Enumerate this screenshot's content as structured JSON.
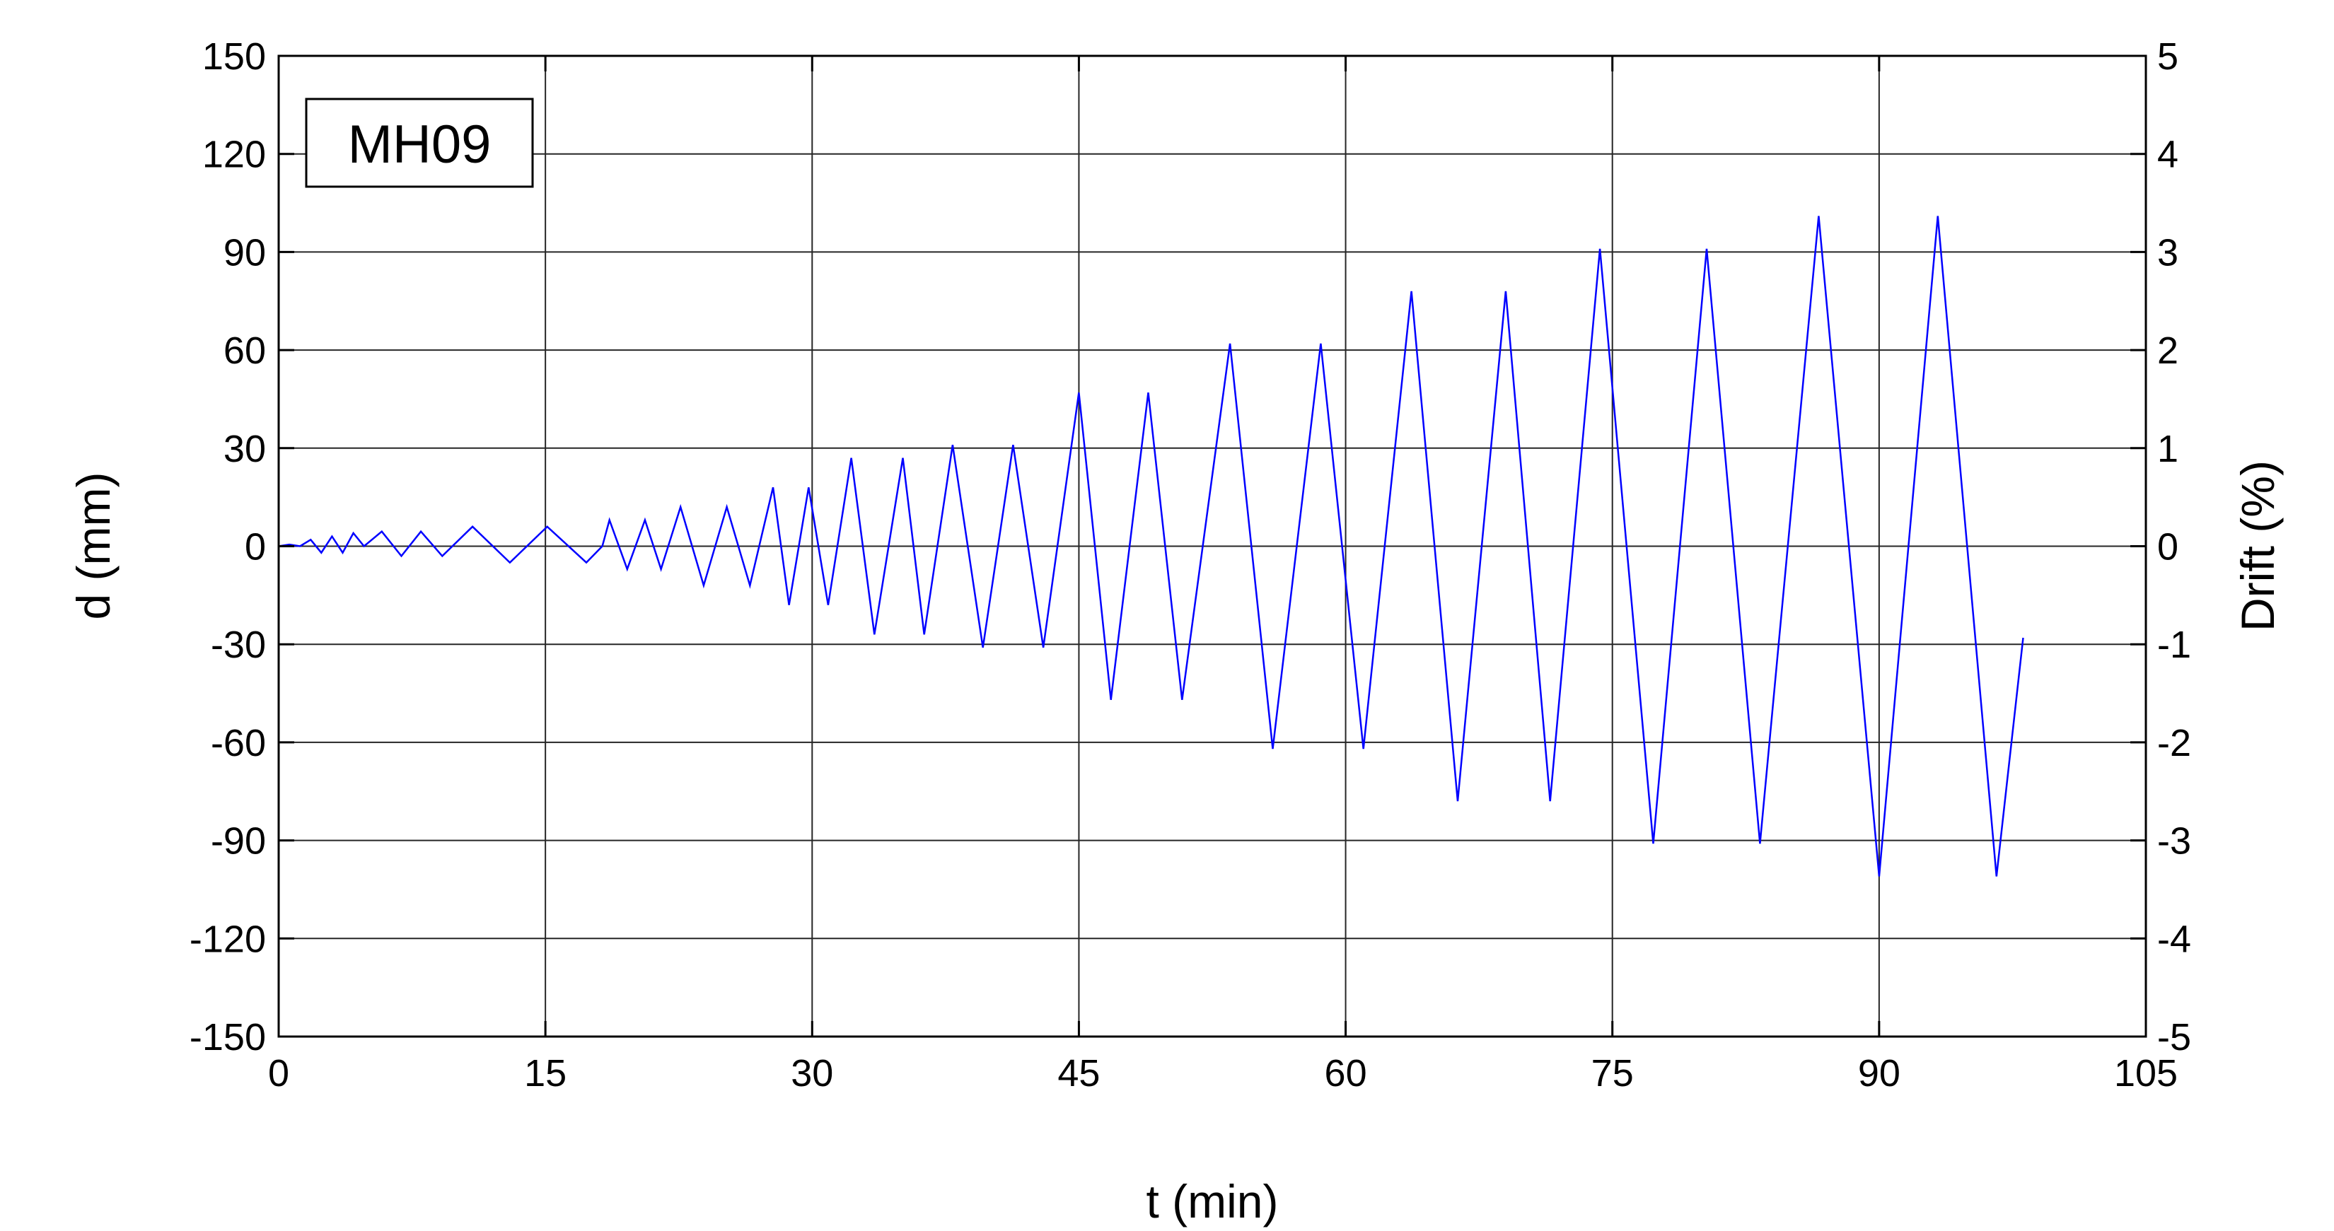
{
  "chart_data": {
    "type": "line",
    "tag": "MH09",
    "xlabel": "t (min)",
    "ylabel": "d (mm)",
    "y2label": "Drift (%)",
    "xlim": [
      0,
      105
    ],
    "ylim": [
      -150,
      150
    ],
    "y2lim": [
      -5,
      5
    ],
    "xticks": [
      0,
      15,
      30,
      45,
      60,
      75,
      90,
      105
    ],
    "yticks": [
      -150,
      -120,
      -90,
      -60,
      -30,
      0,
      30,
      60,
      90,
      120,
      150
    ],
    "y2ticks": [
      -5,
      -4,
      -3,
      -2,
      -1,
      0,
      1,
      2,
      3,
      4,
      5
    ],
    "grid": true,
    "series": [
      {
        "color": "#0000ff",
        "x": [
          0,
          0.6,
          1.2,
          1.8,
          2.4,
          3.0,
          3.6,
          4.2,
          4.8,
          5.8,
          6.9,
          8.0,
          9.2,
          10.9,
          13.0,
          15.1,
          17.3,
          18.2,
          18.6,
          19.6,
          20.6,
          21.5,
          22.6,
          23.9,
          25.2,
          26.5,
          27.8,
          28.7,
          29.8,
          30.9,
          32.2,
          33.5,
          35.1,
          36.3,
          37.9,
          39.6,
          41.3,
          43.0,
          45.0,
          46.8,
          48.9,
          50.8,
          53.5,
          55.9,
          58.6,
          61.0,
          63.7,
          66.3,
          69.0,
          71.5,
          74.3,
          77.3,
          80.3,
          83.3,
          86.6,
          90.0,
          93.3,
          96.6,
          98.1
        ],
        "y": [
          0,
          0.5,
          0,
          2,
          -2,
          3,
          -2,
          4,
          0,
          4.5,
          -3,
          4.5,
          -3,
          6,
          -5,
          6,
          -5,
          0,
          8,
          -7,
          8,
          -7,
          12,
          -12,
          12,
          -12,
          18,
          -18,
          18,
          -18,
          27,
          -27,
          27,
          -27,
          31,
          -31,
          31,
          -31,
          47,
          -47,
          47,
          -47,
          62,
          -62,
          62,
          -62,
          78,
          -78,
          78,
          -78,
          91,
          -91,
          91,
          -91,
          101,
          -101,
          101,
          -101,
          -28
        ]
      }
    ]
  }
}
